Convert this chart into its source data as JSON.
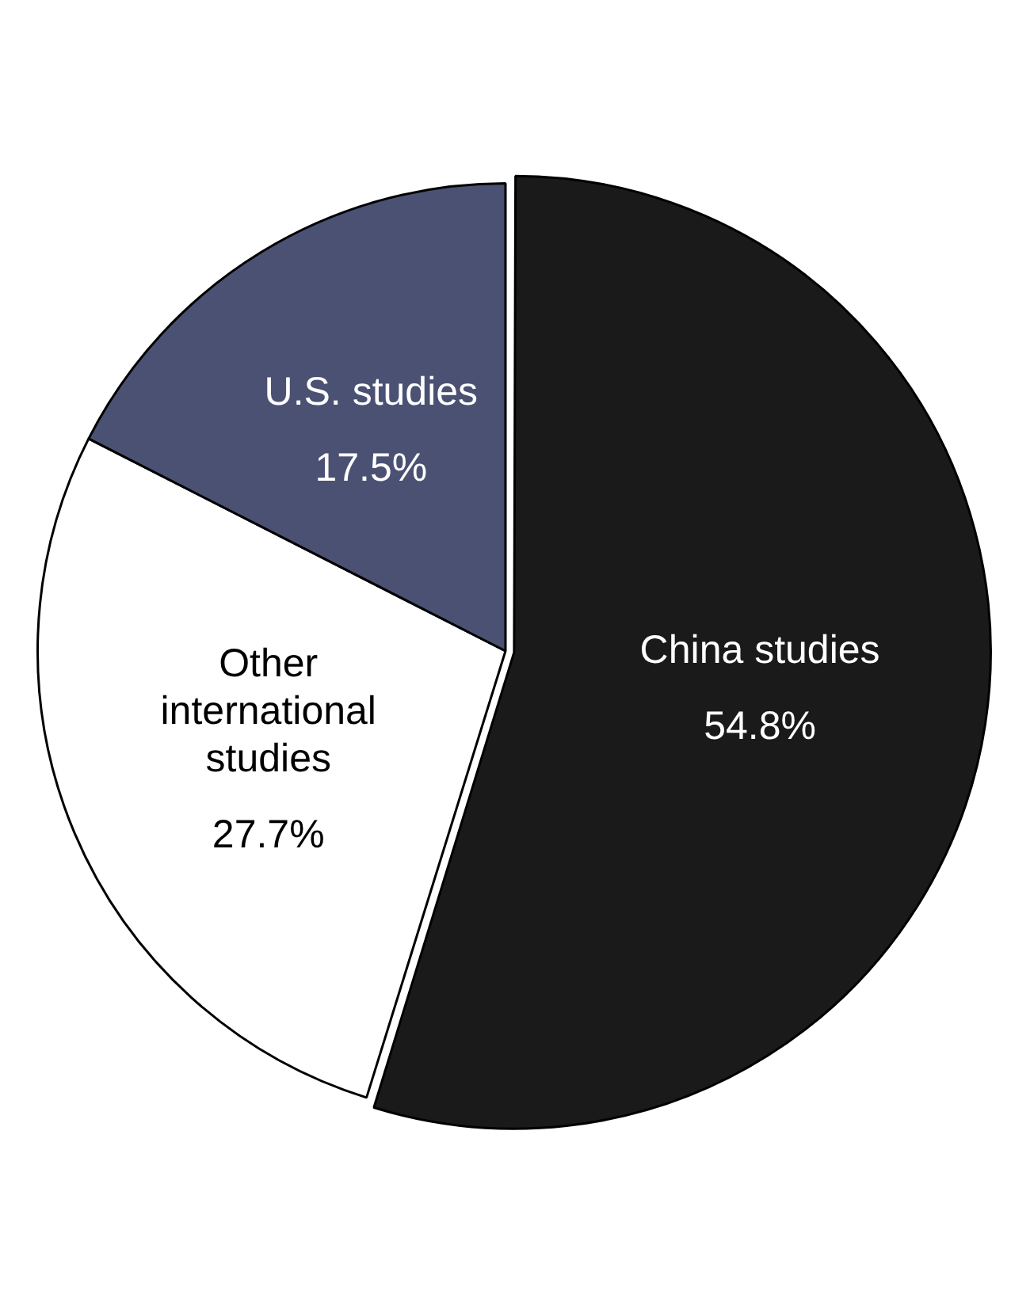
{
  "chart_data": {
    "type": "pie",
    "categories": [
      "China studies",
      "Other international studies",
      "U.S. studies"
    ],
    "values": [
      54.8,
      27.7,
      17.5
    ],
    "colors": [
      "#1a1a1a",
      "#ffffff",
      "#4b5173"
    ],
    "value_labels": [
      "54.8%",
      "27.7%",
      "17.5%"
    ],
    "legend": false
  }
}
